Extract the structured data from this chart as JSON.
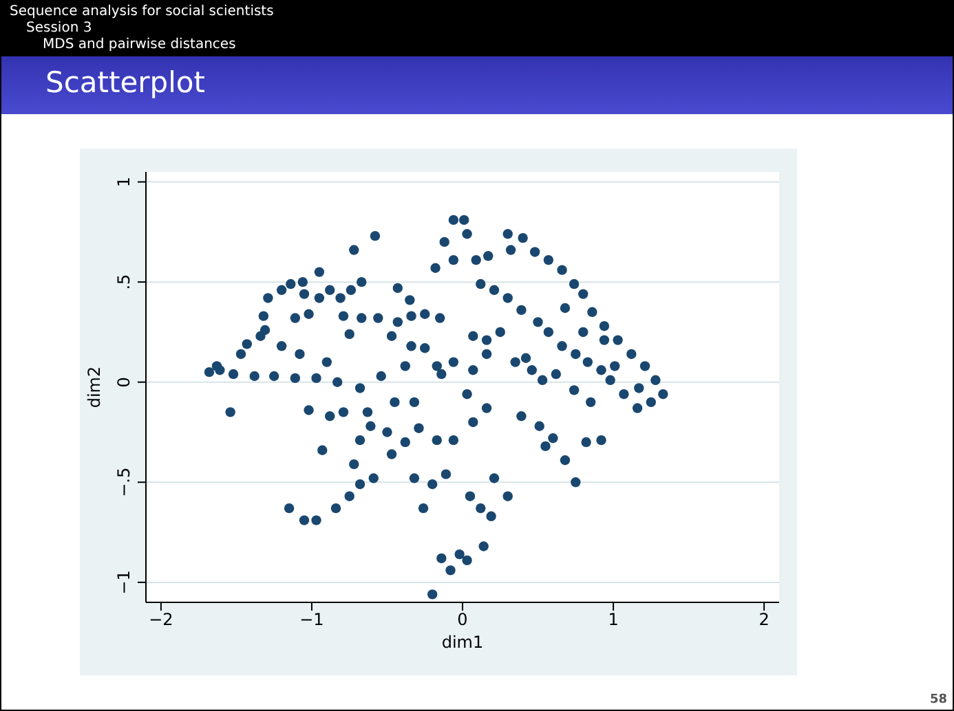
{
  "chart_data": {
    "type": "scatter",
    "title": "Scatterplot",
    "annotations": [
      "Sequence analysis for social scientists",
      "Session 3",
      "MDS and pairwise distances",
      "58"
    ],
    "xlabel": "dim1",
    "ylabel": "dim2",
    "x": [
      -1.68,
      -1.61,
      -1.52,
      -1.38,
      -1.25,
      -1.11,
      -1.54,
      -1.63,
      -1.47,
      -1.43,
      -1.34,
      -1.32,
      -1.29,
      -1.2,
      -1.14,
      -1.06,
      -0.95,
      -1.05,
      -1.31,
      -1.11,
      -1.02,
      -0.95,
      -0.88,
      -0.81,
      -0.74,
      -0.67,
      -0.72,
      -0.58,
      -0.79,
      -0.67,
      -0.56,
      -0.43,
      -0.34,
      -0.25,
      -0.15,
      -0.75,
      -0.9,
      -1.08,
      -1.2,
      -0.97,
      -0.83,
      -0.68,
      -0.54,
      -0.38,
      -0.34,
      -0.43,
      -0.35,
      -0.47,
      -0.25,
      -0.17,
      -0.18,
      -0.12,
      -0.06,
      0.01,
      0.03,
      -0.06,
      0.09,
      0.17,
      0.32,
      0.3,
      0.4,
      0.48,
      0.57,
      0.66,
      0.74,
      0.8,
      0.86,
      0.94,
      1.03,
      1.12,
      1.21,
      1.28,
      1.33,
      1.25,
      1.16,
      1.07,
      0.98,
      0.92,
      0.83,
      0.75,
      0.66,
      0.57,
      0.5,
      0.39,
      0.3,
      0.21,
      0.12,
      0.25,
      0.16,
      0.07,
      0.35,
      0.42,
      0.53,
      0.62,
      0.74,
      0.85,
      0.92,
      0.82,
      0.68,
      0.75,
      0.6,
      0.51,
      0.55,
      0.21,
      0.3,
      0.12,
      0.19,
      0.05,
      0.14,
      0.03,
      -0.02,
      -0.08,
      -0.14,
      -0.2,
      -0.26,
      -0.32,
      -0.2,
      -0.11,
      -0.06,
      -0.17,
      -0.29,
      -0.38,
      -0.47,
      -0.59,
      -0.68,
      -0.75,
      -0.84,
      -0.97,
      -1.05,
      -1.15,
      -0.93,
      -0.72,
      -0.68,
      -0.61,
      -0.5,
      -0.88,
      -0.79,
      -1.02,
      -0.63,
      -0.45,
      -0.32,
      0.03,
      0.16,
      0.07,
      0.39,
      0.16,
      -0.06,
      -0.14,
      0.07,
      0.46,
      0.68,
      0.8,
      0.94,
      1.01,
      1.17
    ],
    "values": [
      0.05,
      0.06,
      0.04,
      0.03,
      0.03,
      0.02,
      -0.15,
      0.08,
      0.14,
      0.19,
      0.23,
      0.33,
      0.42,
      0.46,
      0.49,
      0.5,
      0.55,
      0.44,
      0.26,
      0.32,
      0.34,
      0.42,
      0.46,
      0.42,
      0.46,
      0.5,
      0.66,
      0.73,
      0.33,
      0.32,
      0.32,
      0.3,
      0.33,
      0.34,
      0.32,
      0.24,
      0.1,
      0.14,
      0.18,
      0.02,
      0.0,
      -0.03,
      0.03,
      0.08,
      0.18,
      0.47,
      0.41,
      0.23,
      0.17,
      0.08,
      0.57,
      0.7,
      0.81,
      0.81,
      0.74,
      0.61,
      0.61,
      0.63,
      0.66,
      0.74,
      0.72,
      0.65,
      0.61,
      0.56,
      0.49,
      0.44,
      0.35,
      0.28,
      0.21,
      0.14,
      0.08,
      0.01,
      -0.06,
      -0.1,
      -0.13,
      -0.06,
      0.01,
      0.06,
      0.1,
      0.14,
      0.18,
      0.25,
      0.3,
      0.36,
      0.42,
      0.46,
      0.49,
      0.25,
      0.21,
      0.23,
      0.1,
      0.12,
      0.01,
      0.04,
      -0.04,
      -0.1,
      -0.29,
      -0.3,
      -0.39,
      -0.5,
      -0.28,
      -0.22,
      -0.32,
      -0.48,
      -0.57,
      -0.63,
      -0.67,
      -0.57,
      -0.82,
      -0.89,
      -0.86,
      -0.94,
      -0.88,
      -1.06,
      -0.63,
      -0.48,
      -0.51,
      -0.46,
      -0.29,
      -0.29,
      -0.23,
      -0.3,
      -0.36,
      -0.48,
      -0.51,
      -0.57,
      -0.63,
      -0.69,
      -0.69,
      -0.63,
      -0.34,
      -0.41,
      -0.29,
      -0.22,
      -0.25,
      -0.17,
      -0.15,
      -0.14,
      -0.15,
      -0.1,
      -0.1,
      -0.06,
      -0.13,
      -0.2,
      -0.17,
      0.14,
      0.1,
      0.04,
      0.06,
      0.06,
      0.37,
      0.25,
      0.21,
      0.08,
      -0.03
    ],
    "color": "#1a476f",
    "marker": "circle",
    "grid": "y",
    "xlim": [
      -2.1,
      2.1
    ],
    "ylim": [
      -1.1,
      1.05
    ],
    "xticks": [
      {
        "value": -2,
        "label": "−2"
      },
      {
        "value": -1,
        "label": "−1"
      },
      0,
      1,
      2
    ],
    "yticks": [
      {
        "value": -1,
        "label": "−1"
      },
      {
        "value": -0.5,
        "label": "−.5"
      },
      0,
      {
        "value": 0.5,
        "label": ".5"
      },
      1
    ]
  }
}
